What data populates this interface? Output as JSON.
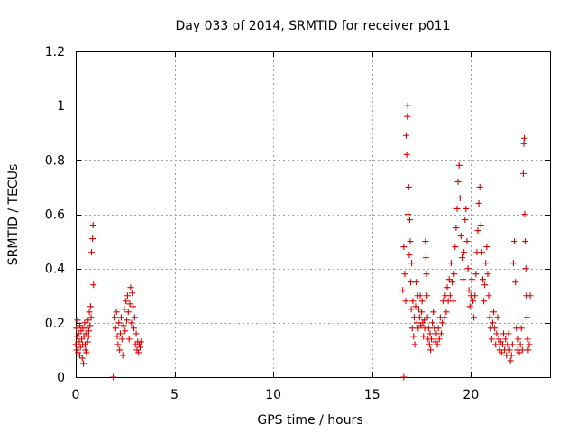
{
  "chart_data": {
    "type": "scatter",
    "title": "Day 033 of 2014, SRMTID for receiver p011",
    "xlabel": "GPS time / hours",
    "ylabel": "SRMTID / TECUs",
    "xlim": [
      0,
      24
    ],
    "ylim": [
      0,
      1.2
    ],
    "grid": true,
    "marker": "+",
    "color": "#dd0000",
    "x_ticks": [
      {
        "value": 0,
        "label": "0"
      },
      {
        "value": 5,
        "label": "5"
      },
      {
        "value": 10,
        "label": "10"
      },
      {
        "value": 15,
        "label": "15"
      },
      {
        "value": 20,
        "label": "20"
      }
    ],
    "y_ticks": [
      {
        "value": 0,
        "label": "0"
      },
      {
        "value": 0.2,
        "label": "0.2"
      },
      {
        "value": 0.4,
        "label": "0.4"
      },
      {
        "value": 0.6,
        "label": "0.6"
      },
      {
        "value": 0.8,
        "label": "0.8"
      },
      {
        "value": 1.0,
        "label": "1"
      },
      {
        "value": 1.2,
        "label": "1.2"
      }
    ],
    "series": [
      {
        "name": "SRMTID",
        "points": [
          [
            0.0,
            0.12
          ],
          [
            0.03,
            0.18
          ],
          [
            0.06,
            0.15
          ],
          [
            0.09,
            0.21
          ],
          [
            0.12,
            0.09
          ],
          [
            0.15,
            0.16
          ],
          [
            0.18,
            0.13
          ],
          [
            0.21,
            0.19
          ],
          [
            0.24,
            0.11
          ],
          [
            0.27,
            0.17
          ],
          [
            0.3,
            0.14
          ],
          [
            0.33,
            0.07
          ],
          [
            0.36,
            0.18
          ],
          [
            0.39,
            0.05
          ],
          [
            0.42,
            0.15
          ],
          [
            0.45,
            0.2
          ],
          [
            0.48,
            0.12
          ],
          [
            0.51,
            0.16
          ],
          [
            0.54,
            0.09
          ],
          [
            0.57,
            0.18
          ],
          [
            0.6,
            0.13
          ],
          [
            0.63,
            0.21
          ],
          [
            0.66,
            0.17
          ],
          [
            0.69,
            0.24
          ],
          [
            0.72,
            0.19
          ],
          [
            0.75,
            0.26
          ],
          [
            0.78,
            0.22
          ],
          [
            0.8,
            0.46
          ],
          [
            0.85,
            0.51
          ],
          [
            0.88,
            0.56
          ],
          [
            0.9,
            0.34
          ],
          [
            0.05,
            0.1
          ],
          [
            0.2,
            0.08
          ],
          [
            0.35,
            0.12
          ],
          [
            0.5,
            0.1
          ],
          [
            0.65,
            0.15
          ],
          [
            1.9,
            0.0
          ],
          [
            1.98,
            0.22
          ],
          [
            2.02,
            0.18
          ],
          [
            2.06,
            0.24
          ],
          [
            2.1,
            0.15
          ],
          [
            2.14,
            0.12
          ],
          [
            2.18,
            0.2
          ],
          [
            2.22,
            0.1
          ],
          [
            2.26,
            0.16
          ],
          [
            2.3,
            0.22
          ],
          [
            2.34,
            0.14
          ],
          [
            2.38,
            0.08
          ],
          [
            2.42,
            0.19
          ],
          [
            2.46,
            0.25
          ],
          [
            2.5,
            0.17
          ],
          [
            2.54,
            0.28
          ],
          [
            2.58,
            0.21
          ],
          [
            2.62,
            0.3
          ],
          [
            2.66,
            0.24
          ],
          [
            2.7,
            0.14
          ],
          [
            2.74,
            0.27
          ],
          [
            2.78,
            0.33
          ],
          [
            2.82,
            0.2
          ],
          [
            2.86,
            0.31
          ],
          [
            2.9,
            0.26
          ],
          [
            2.94,
            0.18
          ],
          [
            2.98,
            0.22
          ],
          [
            3.02,
            0.12
          ],
          [
            3.06,
            0.16
          ],
          [
            3.1,
            0.1
          ],
          [
            3.14,
            0.13
          ],
          [
            3.18,
            0.09
          ],
          [
            3.22,
            0.12
          ],
          [
            3.26,
            0.11
          ],
          [
            3.3,
            0.13
          ],
          [
            16.6,
            0.0
          ],
          [
            16.55,
            0.32
          ],
          [
            16.6,
            0.48
          ],
          [
            16.65,
            0.38
          ],
          [
            16.7,
            0.28
          ],
          [
            16.72,
            0.89
          ],
          [
            16.75,
            0.82
          ],
          [
            16.78,
            0.96
          ],
          [
            16.8,
            1.0
          ],
          [
            16.82,
            0.6
          ],
          [
            16.85,
            0.7
          ],
          [
            16.88,
            0.45
          ],
          [
            16.9,
            0.58
          ],
          [
            16.93,
            0.5
          ],
          [
            16.95,
            0.35
          ],
          [
            16.98,
            0.25
          ],
          [
            17.0,
            0.42
          ],
          [
            17.03,
            0.18
          ],
          [
            17.06,
            0.28
          ],
          [
            17.1,
            0.15
          ],
          [
            17.13,
            0.22
          ],
          [
            17.16,
            0.12
          ],
          [
            17.2,
            0.26
          ],
          [
            17.23,
            0.35
          ],
          [
            17.26,
            0.2
          ],
          [
            17.3,
            0.3
          ],
          [
            17.33,
            0.18
          ],
          [
            17.36,
            0.25
          ],
          [
            17.4,
            0.22
          ],
          [
            17.43,
            0.3
          ],
          [
            17.46,
            0.19
          ],
          [
            17.5,
            0.24
          ],
          [
            17.53,
            0.28
          ],
          [
            17.56,
            0.2
          ],
          [
            17.6,
            0.15
          ],
          [
            17.63,
            0.21
          ],
          [
            17.66,
            0.18
          ],
          [
            17.7,
            0.5
          ],
          [
            17.72,
            0.44
          ],
          [
            17.75,
            0.38
          ],
          [
            17.78,
            0.3
          ],
          [
            17.8,
            0.22
          ],
          [
            17.83,
            0.14
          ],
          [
            17.86,
            0.18
          ],
          [
            17.9,
            0.12
          ],
          [
            17.93,
            0.16
          ],
          [
            17.96,
            0.1
          ],
          [
            18.0,
            0.14
          ],
          [
            18.05,
            0.2
          ],
          [
            18.1,
            0.24
          ],
          [
            18.15,
            0.18
          ],
          [
            18.2,
            0.13
          ],
          [
            18.25,
            0.16
          ],
          [
            18.3,
            0.12
          ],
          [
            18.35,
            0.18
          ],
          [
            18.4,
            0.14
          ],
          [
            18.45,
            0.22
          ],
          [
            18.5,
            0.16
          ],
          [
            18.55,
            0.2
          ],
          [
            18.6,
            0.28
          ],
          [
            18.65,
            0.22
          ],
          [
            18.7,
            0.3
          ],
          [
            18.75,
            0.24
          ],
          [
            18.8,
            0.33
          ],
          [
            18.85,
            0.28
          ],
          [
            18.9,
            0.36
          ],
          [
            18.95,
            0.3
          ],
          [
            19.0,
            0.42
          ],
          [
            19.05,
            0.35
          ],
          [
            19.1,
            0.28
          ],
          [
            19.15,
            0.38
          ],
          [
            19.2,
            0.48
          ],
          [
            19.25,
            0.55
          ],
          [
            19.3,
            0.62
          ],
          [
            19.35,
            0.72
          ],
          [
            19.4,
            0.78
          ],
          [
            19.45,
            0.66
          ],
          [
            19.5,
            0.52
          ],
          [
            19.55,
            0.44
          ],
          [
            19.6,
            0.36
          ],
          [
            19.65,
            0.46
          ],
          [
            19.7,
            0.58
          ],
          [
            19.75,
            0.62
          ],
          [
            19.8,
            0.5
          ],
          [
            19.85,
            0.4
          ],
          [
            19.9,
            0.32
          ],
          [
            19.95,
            0.26
          ],
          [
            20.0,
            0.3
          ],
          [
            20.05,
            0.36
          ],
          [
            20.1,
            0.28
          ],
          [
            20.15,
            0.22
          ],
          [
            20.2,
            0.3
          ],
          [
            20.25,
            0.38
          ],
          [
            20.3,
            0.46
          ],
          [
            20.35,
            0.54
          ],
          [
            20.4,
            0.64
          ],
          [
            20.45,
            0.7
          ],
          [
            20.5,
            0.56
          ],
          [
            20.55,
            0.46
          ],
          [
            20.6,
            0.36
          ],
          [
            20.65,
            0.28
          ],
          [
            20.7,
            0.34
          ],
          [
            20.75,
            0.42
          ],
          [
            20.8,
            0.48
          ],
          [
            20.85,
            0.38
          ],
          [
            20.9,
            0.3
          ],
          [
            20.95,
            0.22
          ],
          [
            21.0,
            0.18
          ],
          [
            21.05,
            0.14
          ],
          [
            21.1,
            0.2
          ],
          [
            21.15,
            0.24
          ],
          [
            21.2,
            0.18
          ],
          [
            21.25,
            0.12
          ],
          [
            21.3,
            0.16
          ],
          [
            21.35,
            0.22
          ],
          [
            21.4,
            0.14
          ],
          [
            21.45,
            0.1
          ],
          [
            21.5,
            0.13
          ],
          [
            21.55,
            0.09
          ],
          [
            21.6,
            0.12
          ],
          [
            21.65,
            0.16
          ],
          [
            21.7,
            0.1
          ],
          [
            21.75,
            0.14
          ],
          [
            21.8,
            0.08
          ],
          [
            21.85,
            0.12
          ],
          [
            21.9,
            0.16
          ],
          [
            21.95,
            0.1
          ],
          [
            22.0,
            0.06
          ],
          [
            22.05,
            0.08
          ],
          [
            22.1,
            0.12
          ],
          [
            22.15,
            0.42
          ],
          [
            22.2,
            0.5
          ],
          [
            22.25,
            0.35
          ],
          [
            22.3,
            0.18
          ],
          [
            22.35,
            0.1
          ],
          [
            22.4,
            0.14
          ],
          [
            22.45,
            0.09
          ],
          [
            22.5,
            0.12
          ],
          [
            22.55,
            0.18
          ],
          [
            22.6,
            0.1
          ],
          [
            22.65,
            0.75
          ],
          [
            22.68,
            0.86
          ],
          [
            22.7,
            0.88
          ],
          [
            22.72,
            0.6
          ],
          [
            22.75,
            0.5
          ],
          [
            22.78,
            0.4
          ],
          [
            22.8,
            0.3
          ],
          [
            22.83,
            0.22
          ],
          [
            22.86,
            0.14
          ],
          [
            22.9,
            0.1
          ],
          [
            22.95,
            0.12
          ],
          [
            23.0,
            0.3
          ]
        ]
      }
    ]
  }
}
